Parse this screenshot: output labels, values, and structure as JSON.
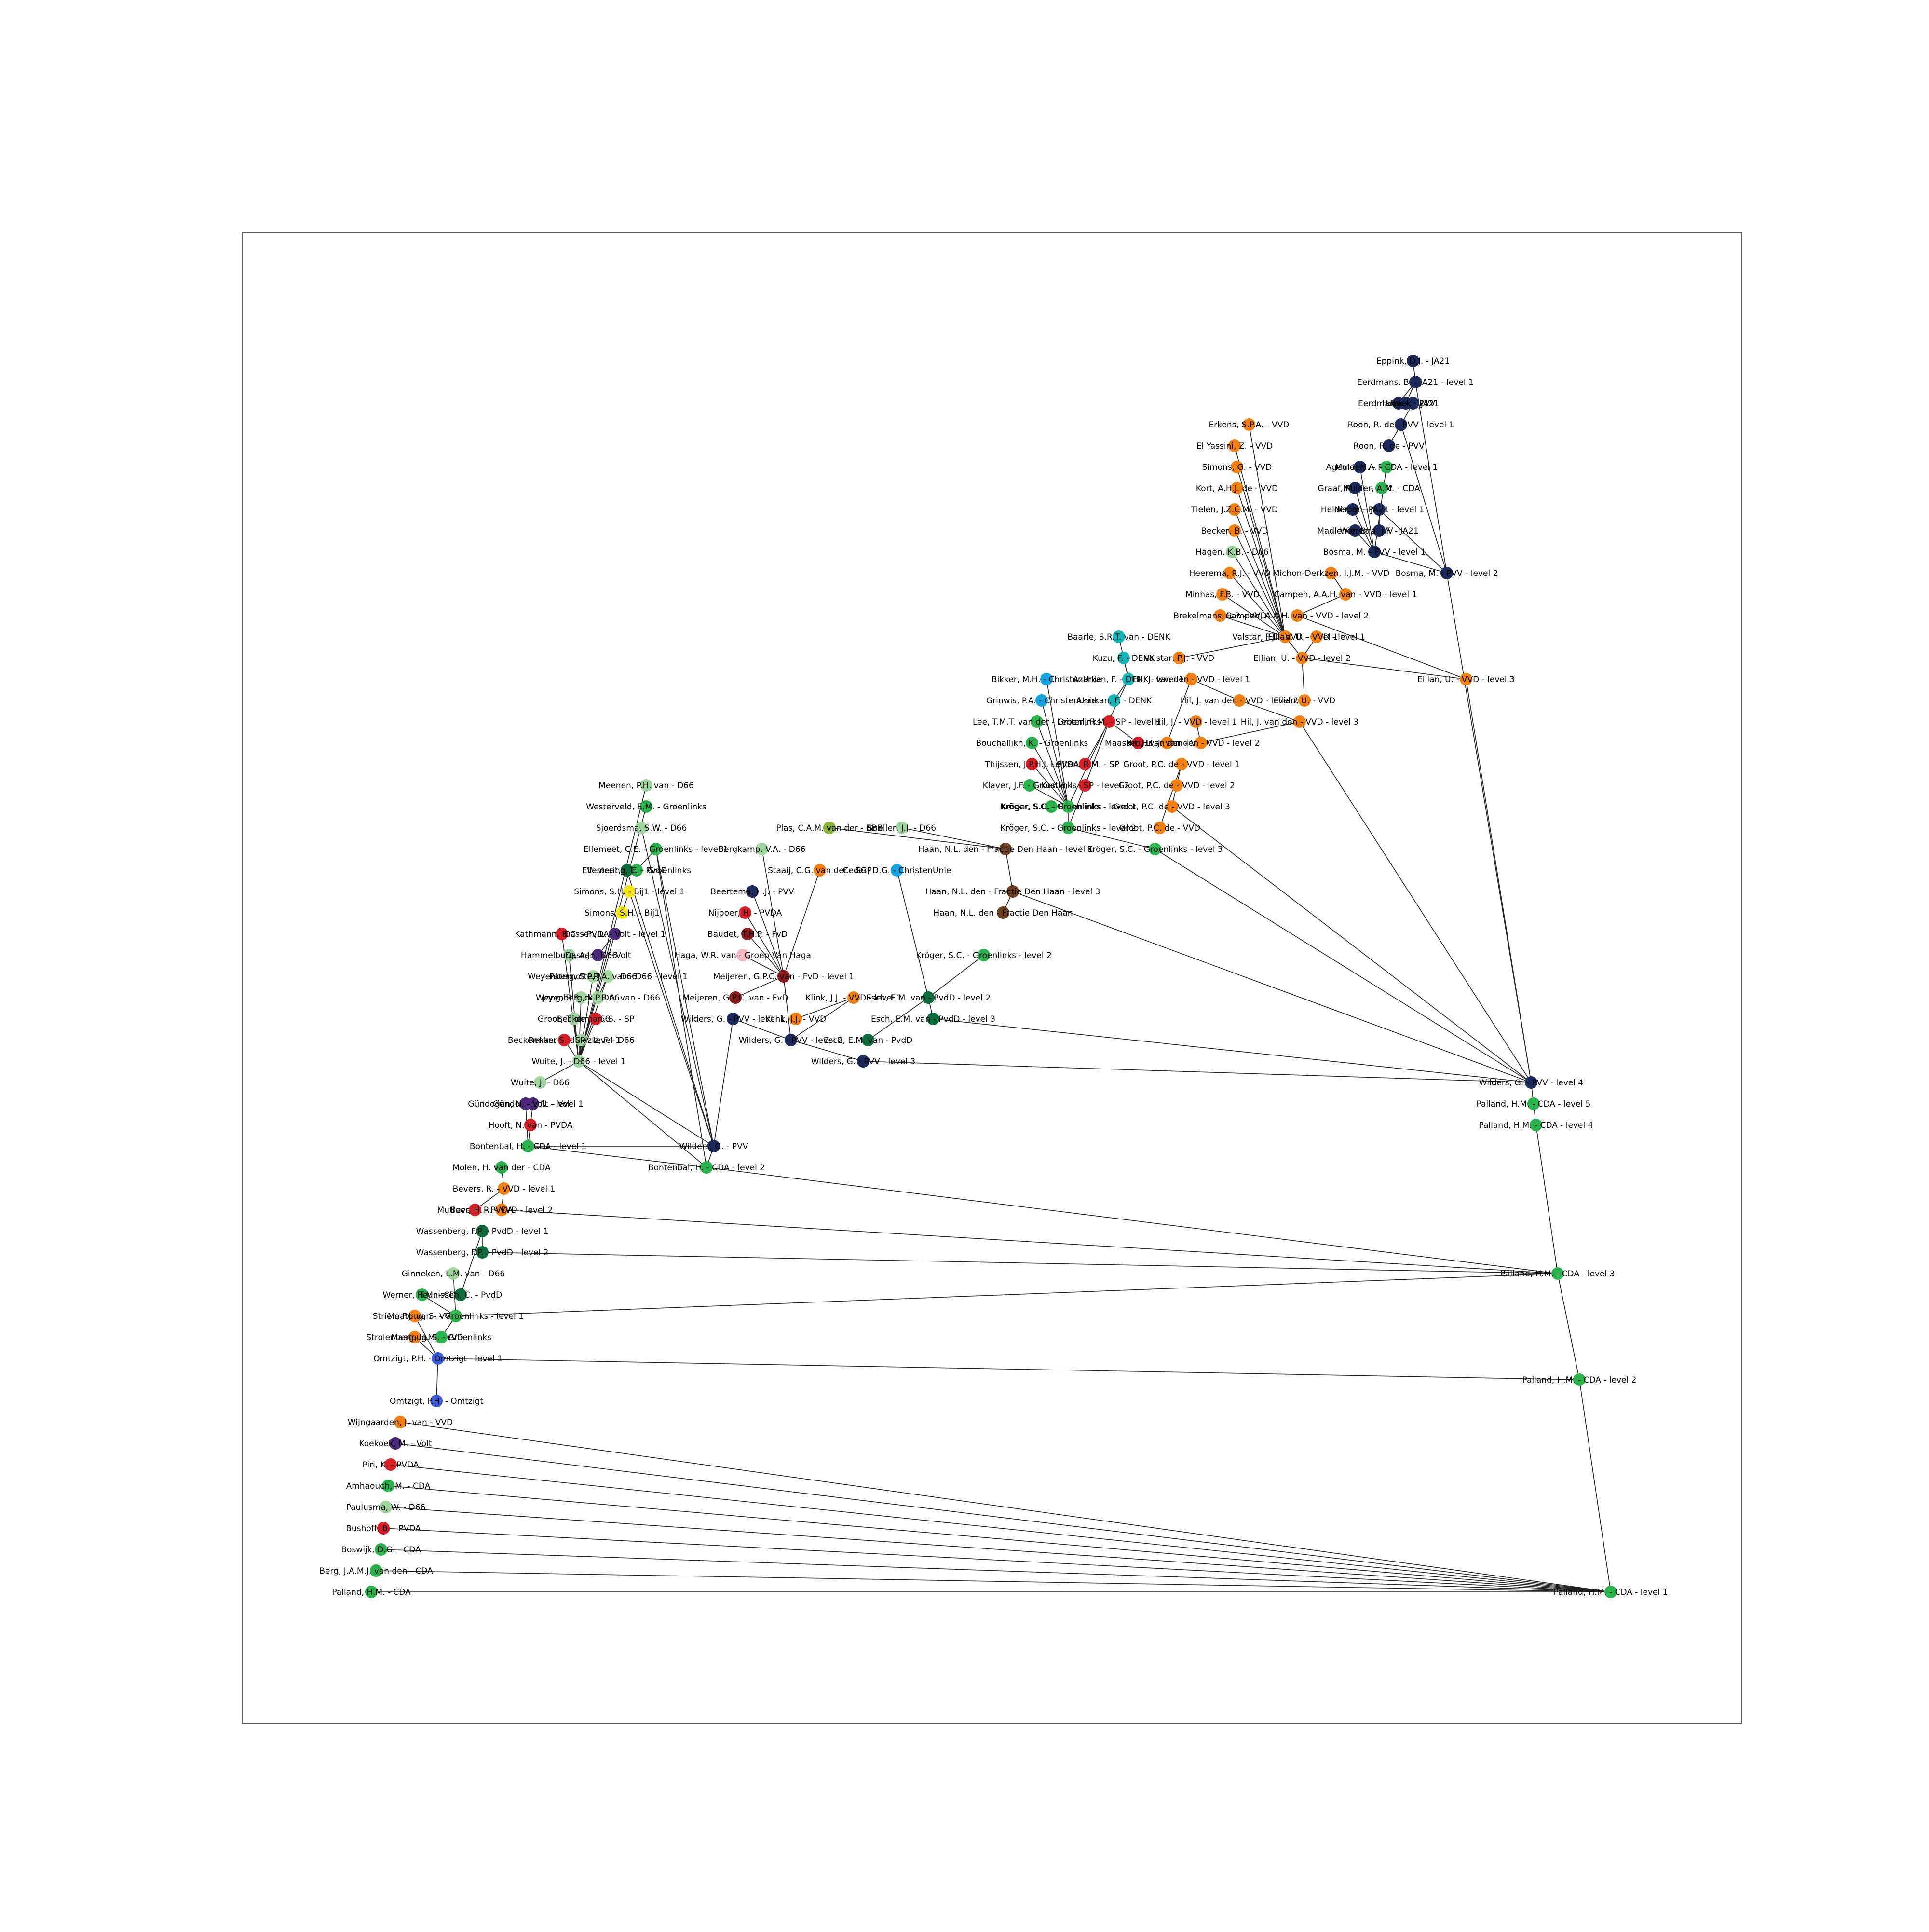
{
  "diagram": {
    "nodes": [
      {
        "id": "n_eppink",
        "label": "Eppink, D.J. - JA21",
        "color": "#1b2a5a"
      },
      {
        "id": "n_eerdmans1",
        "label": "Eerdmans, B. - JA21 - level 1",
        "color": "#1b2a5a"
      },
      {
        "id": "n_ja21a",
        "label": "Eerdmans, B. - JA21",
        "color": "#1b2a5a"
      },
      {
        "id": "n_ja21b",
        "label": "Hoek - JA21",
        "color": "#1b2a5a"
      },
      {
        "id": "n_ja21c",
        "label": "Beek - PVV",
        "color": "#1b2a5a"
      },
      {
        "id": "n_roon1",
        "label": "Roon, R. de - PVV - level 1",
        "color": "#1b2a5a"
      },
      {
        "id": "n_roon",
        "label": "Roon, R. de - PVV",
        "color": "#1b2a5a"
      },
      {
        "id": "n_agema",
        "label": "Agema, M. - PVV",
        "color": "#1b2a5a"
      },
      {
        "id": "n_mulder",
        "label": "Mulder, A. - CDA - level 1",
        "color": "#2bb24c"
      },
      {
        "id": "n_graaf",
        "label": "Graaf, M. de - PVV",
        "color": "#1b2a5a"
      },
      {
        "id": "n_graafcda",
        "label": "Mulder, A.M. - CDA",
        "color": "#2bb24c"
      },
      {
        "id": "n_helder",
        "label": "Helder, V. - PVV",
        "color": "#1b2a5a"
      },
      {
        "id": "n_ja21lvl",
        "label": "Nispen - JA21 - level 1",
        "color": "#1b2a5a"
      },
      {
        "id": "n_mardi",
        "label": "Madlener, B. - PVV",
        "color": "#1b2a5a"
      },
      {
        "id": "n_ja21d",
        "label": "Wiersma, J.F. - JA21",
        "color": "#1b2a5a"
      },
      {
        "id": "n_bosma1",
        "label": "Bosma, M. - PVV - level 1",
        "color": "#1b2a5a"
      },
      {
        "id": "n_bosma2",
        "label": "Bosma, M. - PVV - level 2",
        "color": "#1b2a5a"
      },
      {
        "id": "n_erkens",
        "label": "Erkens, S.P.A. - VVD",
        "color": "#f07f14"
      },
      {
        "id": "n_elyassini",
        "label": "El Yassini, Z. - VVD",
        "color": "#f07f14"
      },
      {
        "id": "n_simons",
        "label": "Simons, G. - VVD",
        "color": "#f07f14"
      },
      {
        "id": "n_kort",
        "label": "Kort, A.H.J. de - VVD",
        "color": "#f07f14"
      },
      {
        "id": "n_tielen",
        "label": "Tielen, J.Z.C.M. - VVD",
        "color": "#f07f14"
      },
      {
        "id": "n_becker",
        "label": "Becker, B. - VVD",
        "color": "#f07f14"
      },
      {
        "id": "n_hagen",
        "label": "Hagen, K.B. - D66",
        "color": "#9fd49e"
      },
      {
        "id": "n_heerema",
        "label": "Heerema, R.J. - VVD",
        "color": "#f07f14"
      },
      {
        "id": "n_michon",
        "label": "Michon-Derkzen, I.J.M. - VVD",
        "color": "#f07f14"
      },
      {
        "id": "n_minhas",
        "label": "Minhas, F.B. - VVD",
        "color": "#f07f14"
      },
      {
        "id": "n_campen1",
        "label": "Campen, A.A.H. van - VVD - level 1",
        "color": "#f07f14"
      },
      {
        "id": "n_brekelmans",
        "label": "Brekelmans, R.P. - VVD",
        "color": "#f07f14"
      },
      {
        "id": "n_campen2",
        "label": "Campen, A.A.H. van - VVD - level 2",
        "color": "#f07f14"
      },
      {
        "id": "n_baarle",
        "label": "Baarle, S.R.T. van - DENK",
        "color": "#16b5b8"
      },
      {
        "id": "n_valstar1",
        "label": "Valstar, P.J. - VVD - level 1",
        "color": "#f07f14"
      },
      {
        "id": "n_vvdlvl1",
        "label": "Ellian, U. - VVD - level 1",
        "color": "#f07f14"
      },
      {
        "id": "n_kuzu",
        "label": "Kuzu, F. - DENK",
        "color": "#16b5b8"
      },
      {
        "id": "n_valstar",
        "label": "Valstar, P.J. - VVD",
        "color": "#f07f14"
      },
      {
        "id": "n_ellian2",
        "label": "Ellian, U. - VVD - level 2",
        "color": "#f07f14"
      },
      {
        "id": "n_ellian3",
        "label": "Ellian, U. - VVD - level 3",
        "color": "#f07f14"
      },
      {
        "id": "n_bikker",
        "label": "Bikker, M.H. - ChristenUnie",
        "color": "#17a3e0"
      },
      {
        "id": "n_denk1",
        "label": "Azarkan, F. - DENK - level 1",
        "color": "#16b5b8"
      },
      {
        "id": "n_hil1",
        "label": "Hil, J. van den - VVD - level 1",
        "color": "#f07f14"
      },
      {
        "id": "n_grinwis",
        "label": "Grinwis, P.A. - ChristenUnie",
        "color": "#17a3e0"
      },
      {
        "id": "n_denk",
        "label": "Azarkan, F. - DENK",
        "color": "#16b5b8"
      },
      {
        "id": "n_ellian",
        "label": "Ellian, U. - VVD",
        "color": "#f07f14"
      },
      {
        "id": "n_hil2",
        "label": "Hil, J. van den - VVD - level 2",
        "color": "#f07f14"
      },
      {
        "id": "n_lee",
        "label": "Lee, T.M.T. van der - Groenlinks",
        "color": "#2bb24c"
      },
      {
        "id": "n_sp1",
        "label": "Leijten, R.M. - SP - level 1",
        "color": "#d71f27"
      },
      {
        "id": "n_vvdmg1",
        "label": "Hil, J. - VVD - level 1",
        "color": "#f07f14"
      },
      {
        "id": "n_hil3",
        "label": "Hil, J. van den - VVD - level 3",
        "color": "#f07f14"
      },
      {
        "id": "n_bouchallikh",
        "label": "Bouchallikh, K. - Groenlinks",
        "color": "#2bb24c"
      },
      {
        "id": "n_maatoug",
        "label": "Maassen, L. - SP",
        "color": "#d71f27"
      },
      {
        "id": "n_hil",
        "label": "Hil, J. van den - VVD",
        "color": "#f07f14"
      },
      {
        "id": "n_vvdl2",
        "label": "Hil, J. van den - VVD - level 2",
        "color": "#f07f14"
      },
      {
        "id": "n_thijssen",
        "label": "Thijssen, J.P.H.J. - PVDA",
        "color": "#d71f27"
      },
      {
        "id": "n_sp",
        "label": "Leijten, R.M. - SP",
        "color": "#d71f27"
      },
      {
        "id": "n_groot1",
        "label": "Groot, P.C. de - VVD - level 1",
        "color": "#f07f14"
      },
      {
        "id": "n_klaver",
        "label": "Klaver, J.F. - Groenlinks",
        "color": "#2bb24c"
      },
      {
        "id": "n_sp2",
        "label": "Kostić, I. - SP - level 2",
        "color": "#d71f27"
      },
      {
        "id": "n_groot2",
        "label": "Groot, P.C. de - VVD - level 2",
        "color": "#f07f14"
      },
      {
        "id": "n_kroger",
        "label": "Kröger, S.C. - Groenlinks",
        "color": "#2bb24c"
      },
      {
        "id": "n_gl1",
        "label": "Kröger, S.C. - Groenlinks - level 1",
        "color": "#2bb24c"
      },
      {
        "id": "n_groot3",
        "label": "Groot, P.C. de - VVD - level 3",
        "color": "#f07f14"
      },
      {
        "id": "n_kroger2",
        "label": "Kröger, S.C. - Groenlinks - level 2",
        "color": "#2bb24c"
      },
      {
        "id": "n_groot",
        "label": "Groot, P.C. de - VVD",
        "color": "#f07f14"
      },
      {
        "id": "n_kroger3",
        "label": "Kröger, S.C. - Groenlinks - level 3",
        "color": "#2bb24c"
      },
      {
        "id": "n_meenen",
        "label": "Meenen, P.H. van - D66",
        "color": "#9fd49e"
      },
      {
        "id": "n_westerveld",
        "label": "Westerveld, E.M. - Groenlinks",
        "color": "#2bb24c"
      },
      {
        "id": "n_sjoerdsma",
        "label": "Sjoerdsma, S.W. - D66",
        "color": "#9fd49e"
      },
      {
        "id": "n_ellemeet1",
        "label": "Ellemeet, C.E. - Groenlinks - level 1",
        "color": "#2bb24c"
      },
      {
        "id": "n_ellemeet",
        "label": "Ellemeet, C.E. - Groenlinks",
        "color": "#2bb24c"
      },
      {
        "id": "n_pvdd",
        "label": "Vestering, L. - PvdD",
        "color": "#0e6b3c"
      },
      {
        "id": "n_simons1",
        "label": "Simons, S.H. - Bij1 - level 1",
        "color": "#f5e61a"
      },
      {
        "id": "n_simonsbij1",
        "label": "Simons, S.H. - Bij1",
        "color": "#f5e61a"
      },
      {
        "id": "n_plas",
        "label": "Plas, C.A.M. van der - BBB",
        "color": "#8ab33b"
      },
      {
        "id": "n_sneller",
        "label": "Sneller, J.J. - D66",
        "color": "#9fd49e"
      },
      {
        "id": "n_bergkamp",
        "label": "Bergkamp, V.A. - D66",
        "color": "#9fd49e"
      },
      {
        "id": "n_staaij",
        "label": "Staaij, C.G. van der - SGP",
        "color": "#f07f14"
      },
      {
        "id": "n_beertema",
        "label": "Beertema, H.J. - PVV",
        "color": "#1b2a5a"
      },
      {
        "id": "n_nijboer",
        "label": "Nijboer, H. - PVDA",
        "color": "#d71f27"
      },
      {
        "id": "n_baudet",
        "label": "Baudet, T.H.P. - FvD",
        "color": "#8b1a1a"
      },
      {
        "id": "n_haga",
        "label": "Haga, W.R. van - Groep Van Haga",
        "color": "#f4b6c2"
      },
      {
        "id": "n_meijeren1",
        "label": "Meijeren, G.P.C. van - FvD - level 1",
        "color": "#8b1a1a"
      },
      {
        "id": "n_meijeren",
        "label": "Meijeren, G.P.C. van - FvD",
        "color": "#8b1a1a"
      },
      {
        "id": "n_wilders1",
        "label": "Wilders, G. - PVV - level 1",
        "color": "#1b2a5a"
      },
      {
        "id": "n_wilders2",
        "label": "Wilders, G. - PVV - level 2",
        "color": "#1b2a5a"
      },
      {
        "id": "n_wilders3",
        "label": "Wilders, G. - PVV - level 3",
        "color": "#1b2a5a"
      },
      {
        "id": "n_wilders4",
        "label": "Wilders, G. - PVV - level 4",
        "color": "#1b2a5a"
      },
      {
        "id": "n_wilders",
        "label": "Wilders, G. - PVV",
        "color": "#1b2a5a"
      },
      {
        "id": "n_klink",
        "label": "Klink, J.J. - VVD",
        "color": "#f07f14"
      },
      {
        "id": "n_klink1",
        "label": "Klink, J.J. - VVD - level 1",
        "color": "#f07f14"
      },
      {
        "id": "n_esch",
        "label": "Esch, E.M. van - PvdD",
        "color": "#0e6b3c"
      },
      {
        "id": "n_esch2",
        "label": "Esch, E.M. van - PvdD - level 2",
        "color": "#0e6b3c"
      },
      {
        "id": "n_esch3",
        "label": "Esch, E.M. van - PvdD - level 3",
        "color": "#0e6b3c"
      },
      {
        "id": "n_haan1",
        "label": "Haan, N.L. den - Fractie Den Haan - level 1",
        "color": "#6b3f1f"
      },
      {
        "id": "n_haan3",
        "label": "Haan, N.L. den - Fractie Den Haan - level 3",
        "color": "#6b3f1f"
      },
      {
        "id": "n_haan",
        "label": "Haan, N.L. den - Fractie Den Haan",
        "color": "#6b3f1f"
      },
      {
        "id": "n_gl2",
        "label": "Kröger, S.C. - Groenlinks - level 2",
        "color": "#2bb24c"
      },
      {
        "id": "n_cu",
        "label": "Ceder, D.G. - ChristenUnie",
        "color": "#17a3e0"
      },
      {
        "id": "n_omtzigt",
        "label": "Omtzigt, P.H. - Omtzigt",
        "color": "#3a5bd9"
      },
      {
        "id": "n_omtzigt1",
        "label": "Omtzigt, P.H. - Omtzigt - level 1",
        "color": "#3a5bd9"
      },
      {
        "id": "n_palland1",
        "label": "Palland, H.M. - CDA - level 1",
        "color": "#2bb24c"
      },
      {
        "id": "n_palland2",
        "label": "Palland, H.M. - CDA - level 2",
        "color": "#2bb24c"
      },
      {
        "id": "n_palland3",
        "label": "Palland, H.M. - CDA - level 3",
        "color": "#2bb24c"
      },
      {
        "id": "n_palland4",
        "label": "Palland, H.M. - CDA - level 4",
        "color": "#2bb24c"
      },
      {
        "id": "n_palland5",
        "label": "Palland, H.M. - CDA - level 5",
        "color": "#2bb24c"
      },
      {
        "id": "n_palland",
        "label": "Palland, H.M. - CDA",
        "color": "#2bb24c"
      },
      {
        "id": "n_bontenbal1",
        "label": "Bontenbal, H. - CDA - level 1",
        "color": "#2bb24c"
      },
      {
        "id": "n_bontenbal2",
        "label": "Bontenbal, H. - CDA - level 2",
        "color": "#2bb24c"
      },
      {
        "id": "n_wuite1",
        "label": "Wuite, J. - D66 - level 1",
        "color": "#9fd49e"
      },
      {
        "id": "n_wuite",
        "label": "Wuite, J. - D66",
        "color": "#9fd49e"
      },
      {
        "id": "n_dekker",
        "label": "Dekker-Abdulaziz, F. - D66",
        "color": "#9fd49e"
      },
      {
        "id": "n_groottc",
        "label": "Groot, T. de - D66",
        "color": "#9fd49e"
      },
      {
        "id": "n_jong",
        "label": "Jong, R.R. de - D66",
        "color": "#9fd49e"
      },
      {
        "id": "n_paternotte",
        "label": "Paternotte, J.M. - D66",
        "color": "#9fd49e"
      },
      {
        "id": "n_hammelburg",
        "label": "Hammelburg, A.J. - D66",
        "color": "#9fd49e"
      },
      {
        "id": "n_kathmann",
        "label": "Kathmann, B.C. - PVDA",
        "color": "#d71f27"
      },
      {
        "id": "n_volt1",
        "label": "Dassen, L. - Volt - level 1",
        "color": "#4b2a7a"
      },
      {
        "id": "n_volt",
        "label": "Dassen, L. - Volt",
        "color": "#4b2a7a"
      },
      {
        "id": "n_d66lvl1",
        "label": "Weyenberg, S.P.R.A. van - D66 - level 1",
        "color": "#9fd49e"
      },
      {
        "id": "n_weyenberg",
        "label": "Weyenberg, S.P.R.A. van - D66",
        "color": "#9fd49e"
      },
      {
        "id": "n_sp_b",
        "label": "Beckerman, S. - SP",
        "color": "#d71f27"
      },
      {
        "id": "n_spb1",
        "label": "Beckerman, S. - SP - level 1",
        "color": "#d71f27"
      },
      {
        "id": "n_molen",
        "label": "Molen, H. van der - CDA",
        "color": "#2bb24c"
      },
      {
        "id": "n_gundogan",
        "label": "Gündoğan, N. - Volt",
        "color": "#4b2a7a"
      },
      {
        "id": "n_gundogan1",
        "label": "Gündoğan, N. - Volt - level 1",
        "color": "#4b2a7a"
      },
      {
        "id": "n_hooft",
        "label": "Hooft, N. van - PVDA",
        "color": "#d71f27"
      },
      {
        "id": "n_beverlvl",
        "label": "Bevers, R. - VVD - level 1",
        "color": "#f07f14"
      },
      {
        "id": "n_bevers2",
        "label": "Bevers, R. - VVD - level 2",
        "color": "#f07f14"
      },
      {
        "id": "n_mutluer",
        "label": "Mutluer, H. - PVDA",
        "color": "#d71f27"
      },
      {
        "id": "n_wassenberg1",
        "label": "Wassenberg, F.P. - PvdD - level 1",
        "color": "#0e6b3c"
      },
      {
        "id": "n_wassenberg2",
        "label": "Wassenberg, F.P. - PvdD - level 2",
        "color": "#0e6b3c"
      },
      {
        "id": "n_ginneken",
        "label": "Ginneken, L.M. van - D66",
        "color": "#9fd49e"
      },
      {
        "id": "n_werner",
        "label": "Werner, H.M. - CDA",
        "color": "#2bb24c"
      },
      {
        "id": "n_teunissen",
        "label": "Teunissen, C. - PvdD",
        "color": "#0e6b3c"
      },
      {
        "id": "n_strien",
        "label": "Strien, P.J. van - VVD",
        "color": "#f07f14"
      },
      {
        "id": "n_gllvl1",
        "label": "Maatoug, S. - Groenlinks - level 1",
        "color": "#2bb24c"
      },
      {
        "id": "n_strolenberg",
        "label": "Strolenberg, H.M. - VVD",
        "color": "#f07f14"
      },
      {
        "id": "n_maatouggl",
        "label": "Maatoug, S. - Groenlinks",
        "color": "#2bb24c"
      },
      {
        "id": "n_wijngaarden",
        "label": "Wijngaarden, J. van - VVD",
        "color": "#f07f14"
      },
      {
        "id": "n_koekoek",
        "label": "Koekoek, M. - Volt",
        "color": "#4b2a7a"
      },
      {
        "id": "n_piri",
        "label": "Piri, K. - PVDA",
        "color": "#d71f27"
      },
      {
        "id": "n_amhaouch",
        "label": "Amhaouch, M. - CDA",
        "color": "#2bb24c"
      },
      {
        "id": "n_paulusma",
        "label": "Paulusma, W. - D66",
        "color": "#9fd49e"
      },
      {
        "id": "n_bushoff",
        "label": "Bushoff, B. - PVDA",
        "color": "#d71f27"
      },
      {
        "id": "n_boswijk",
        "label": "Boswijk, D.G. - CDA",
        "color": "#2bb24c"
      },
      {
        "id": "n_berg",
        "label": "Berg, J.A.M.J. van den - CDA",
        "color": "#2bb24c"
      }
    ]
  }
}
